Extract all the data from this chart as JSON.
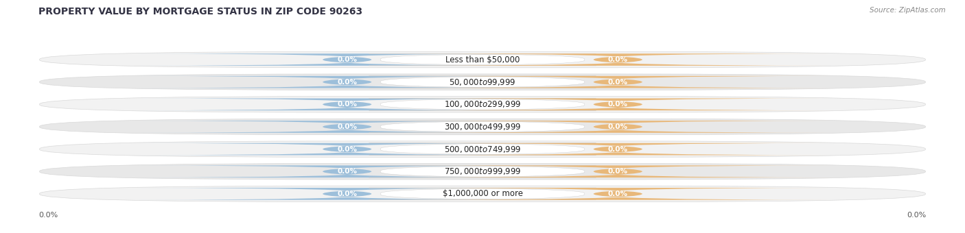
{
  "title": "PROPERTY VALUE BY MORTGAGE STATUS IN ZIP CODE 90263",
  "source": "Source: ZipAtlas.com",
  "categories": [
    "Less than $50,000",
    "$50,000 to $99,999",
    "$100,000 to $299,999",
    "$300,000 to $499,999",
    "$500,000 to $749,999",
    "$750,000 to $999,999",
    "$1,000,000 or more"
  ],
  "without_mortgage": [
    0.0,
    0.0,
    0.0,
    0.0,
    0.0,
    0.0,
    0.0
  ],
  "with_mortgage": [
    0.0,
    0.0,
    0.0,
    0.0,
    0.0,
    0.0,
    0.0
  ],
  "color_without": "#9dbfda",
  "color_with": "#e8b87a",
  "row_bg_light": "#f2f2f2",
  "row_bg_dark": "#e8e8e8",
  "row_outline": "#d8d8d8",
  "x_left_label": "0.0%",
  "x_right_label": "0.0%",
  "title_fontsize": 10,
  "source_fontsize": 7.5,
  "cat_label_fontsize": 8.5,
  "pct_label_fontsize": 7.5,
  "axis_label_fontsize": 8,
  "legend_fontsize": 8
}
